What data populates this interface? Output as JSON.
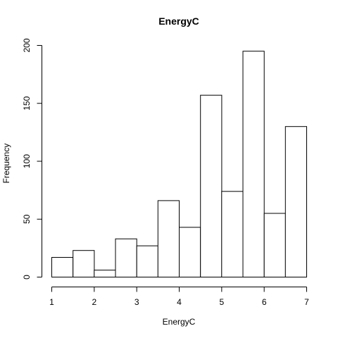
{
  "chart_data": {
    "type": "bar",
    "title": "EnergyC",
    "xlabel": "EnergyC",
    "ylabel": "Frequency",
    "bin_edges": [
      1,
      1.5,
      2,
      2.5,
      3,
      3.5,
      4,
      4.5,
      5,
      5.5,
      6,
      6.5,
      7
    ],
    "values": [
      17,
      23,
      6,
      33,
      27,
      66,
      43,
      157,
      74,
      195,
      55,
      130
    ],
    "xlim": [
      1,
      7
    ],
    "ylim": [
      0,
      200
    ],
    "x_ticks": [
      "1",
      "2",
      "3",
      "4",
      "5",
      "6",
      "7"
    ],
    "y_ticks": [
      "0",
      "50",
      "100",
      "150",
      "200"
    ],
    "grid": false,
    "colors": {
      "bar_fill": "#ffffff",
      "bar_stroke": "#000000"
    }
  }
}
